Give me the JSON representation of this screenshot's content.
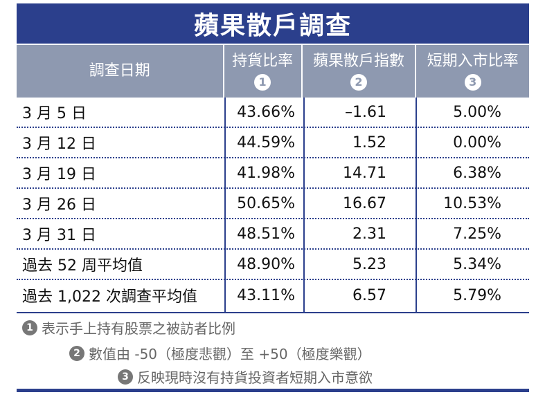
{
  "title": "蘋果散戶調查",
  "header": {
    "date_col": "調查日期",
    "cols": [
      {
        "label": "持貨比率",
        "num": "1"
      },
      {
        "label": "蘋果散戶指數",
        "num": "2"
      },
      {
        "label": "短期入市比率",
        "num": "3"
      }
    ]
  },
  "rows": [
    {
      "date": "3 月 5 日",
      "holding": "43.66%",
      "index": "–1.61",
      "entry": "5.00%"
    },
    {
      "date": "3 月 12 日",
      "holding": "44.59%",
      "index": "1.52",
      "entry": "0.00%"
    },
    {
      "date": "3 月 19 日",
      "holding": "41.98%",
      "index": "14.71",
      "entry": "6.38%"
    },
    {
      "date": "3 月 26 日",
      "holding": "50.65%",
      "index": "16.67",
      "entry": "10.53%"
    },
    {
      "date": "3 月 31 日",
      "holding": "48.51%",
      "index": "2.31",
      "entry": "7.25%"
    },
    {
      "date": "過去 52 周平均值",
      "holding": "48.90%",
      "index": "5.23",
      "entry": "5.34%"
    },
    {
      "date": "過去 1,022 次調查平均值",
      "holding": "43.11%",
      "index": "6.57",
      "entry": "5.79%"
    }
  ],
  "notes": [
    {
      "num": "1",
      "text": "表示手上持有股票之被訪者比例"
    },
    {
      "num": "2",
      "text": "數值由 -50（極度悲觀）至 +50（極度樂觀）"
    },
    {
      "num": "3",
      "text": "反映現時沒有持貨投資者短期入市意欲"
    }
  ]
}
